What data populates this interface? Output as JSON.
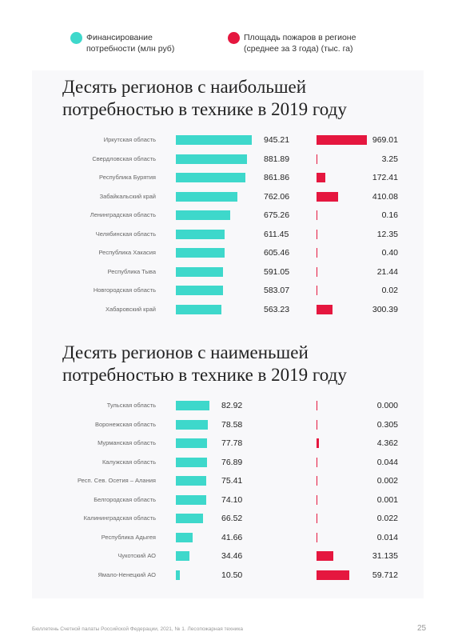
{
  "legend_note": null,
  "chart_data": [
    {
      "type": "bar",
      "title": "Десять регионов с наибольшей\nпотребностью в технике в 2019 году",
      "categories": [
        "Иркутская область",
        "Свердловская область",
        "Республика Бурятия",
        "Забайкальский край",
        "Ленинградская область",
        "Челябинская область",
        "Республика Хакасия",
        "Республика Тыва",
        "Новгородская область",
        "Хабаровский край"
      ],
      "series": [
        {
          "name": "Финансирование\nпотребности (млн руб)",
          "color": "#3ed8cb",
          "values": [
            945.21,
            881.89,
            861.86,
            762.06,
            675.26,
            611.45,
            605.46,
            591.05,
            583.07,
            563.23
          ],
          "value_labels": [
            "945.21",
            "881.89",
            "861.86",
            "762.06",
            "675.26",
            "611.45",
            "605.46",
            "591.05",
            "583.07",
            "563.23"
          ]
        },
        {
          "name": "Площадь пожаров в регионе\n(среднее за 3 года) (тыс. га)",
          "color": "#e5173f",
          "values": [
            969.01,
            3.25,
            172.41,
            410.08,
            0.16,
            12.35,
            0.4,
            21.44,
            0.02,
            300.39
          ],
          "value_labels": [
            "969.01",
            "3.25",
            "172.41",
            "410.08",
            "0.16",
            "12.35",
            "0.40",
            "21.44",
            "0.02",
            "300.39"
          ]
        }
      ]
    },
    {
      "type": "bar",
      "title": "Десять регионов с наименьшей\nпотребностью в технике в 2019 году",
      "categories": [
        "Тульская область",
        "Воронежская область",
        "Мурманская область",
        "Калужская область",
        "Респ. Сев. Осетия – Алания",
        "Белгородская область",
        "Калининградская область",
        "Республика Адыгея",
        "Чукотский АО",
        "Ямало-Ненецкий АО"
      ],
      "series": [
        {
          "color": "#3ed8cb",
          "values": [
            82.92,
            78.58,
            77.78,
            76.89,
            75.41,
            74.1,
            66.52,
            41.66,
            34.46,
            10.5
          ],
          "value_labels": [
            "82.92",
            "78.58",
            "77.78",
            "76.89",
            "75.41",
            "74.10",
            "66.52",
            "41.66",
            "34.46",
            "10.50"
          ]
        },
        {
          "color": "#e5173f",
          "values": [
            0,
            0.305,
            4.362,
            0.044,
            0.002,
            0.001,
            0.022,
            0.014,
            31.135,
            59.712
          ],
          "value_labels": [
            "0.000",
            "0.305",
            "4.362",
            "0.044",
            "0.002",
            "0.001",
            "0.022",
            "0.014",
            "31.135",
            "59.712"
          ]
        }
      ]
    }
  ],
  "footer": {
    "text": "Бюллетень Счетной палаты Российской Федерации, 2021, № 1. Лесопожарная техника",
    "page": "25"
  }
}
